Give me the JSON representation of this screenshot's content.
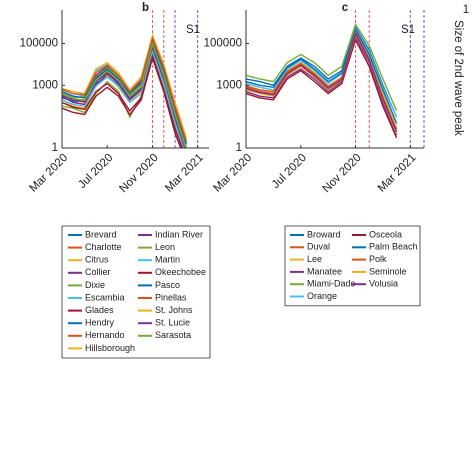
{
  "chart_data": [
    {
      "type": "line",
      "title": "b",
      "annotation": "S1",
      "log_y": true,
      "x": [
        "2020-03",
        "2020-04",
        "2020-05",
        "2020-06",
        "2020-07",
        "2020-08",
        "2020-09",
        "2020-10",
        "2020-11",
        "2020-12",
        "2021-01",
        "2021-02"
      ],
      "xlim": [
        "2020-03",
        "2021-04"
      ],
      "xticks": [
        {
          "value": "2020-03",
          "label": "Mar 2020"
        },
        {
          "value": "2020-07",
          "label": "Jul 2020"
        },
        {
          "value": "2020-11",
          "label": "Nov 2020"
        },
        {
          "value": "2021-03",
          "label": "Mar 2021"
        }
      ],
      "ylim": [
        1,
        4000000
      ],
      "yticks": [
        1,
        1000,
        100000
      ],
      "vlines": [
        {
          "x": "2020-11",
          "color": "#e05a64"
        },
        {
          "x": "2020-12",
          "color": "#e05a64"
        },
        {
          "x": "2021-01",
          "color": "#8a4fc0"
        },
        {
          "x": "2021-03",
          "color": "#4a5ee0"
        }
      ],
      "series": [
        {
          "name": "Brevard",
          "color": "#0072BD",
          "values": [
            300,
            150,
            200,
            1500,
            4000,
            1200,
            200,
            800,
            80000,
            2000,
            30,
            0.5
          ]
        },
        {
          "name": "Charlotte",
          "color": "#D95319",
          "values": [
            400,
            200,
            150,
            2000,
            6000,
            2000,
            300,
            1200,
            150000,
            5000,
            60,
            1
          ]
        },
        {
          "name": "Citrus",
          "color": "#EDB120",
          "values": [
            200,
            100,
            80,
            1000,
            3000,
            800,
            150,
            500,
            60000,
            1500,
            20,
            0.4
          ]
        },
        {
          "name": "Collier",
          "color": "#7E2F8E",
          "values": [
            500,
            300,
            250,
            3000,
            8000,
            2500,
            400,
            1500,
            200000,
            8000,
            100,
            2
          ]
        },
        {
          "name": "Dixie",
          "color": "#77AC30",
          "values": [
            100,
            80,
            50,
            400,
            1500,
            500,
            30,
            300,
            30000,
            800,
            10,
            0.3
          ]
        },
        {
          "name": "Escambia",
          "color": "#4DBEEE",
          "values": [
            600,
            400,
            300,
            5000,
            10000,
            3000,
            500,
            2000,
            120000,
            6000,
            80,
            1
          ]
        },
        {
          "name": "Glades",
          "color": "#A2142F",
          "values": [
            80,
            50,
            40,
            300,
            800,
            300,
            40,
            200,
            20000,
            500,
            5,
            0.2
          ]
        },
        {
          "name": "Hendry",
          "color": "#0072BD",
          "values": [
            250,
            180,
            200,
            1200,
            2500,
            1000,
            250,
            700,
            50000,
            1500,
            25,
            0.5
          ]
        },
        {
          "name": "Hernando",
          "color": "#D95319",
          "values": [
            350,
            200,
            180,
            1800,
            5000,
            1500,
            300,
            900,
            90000,
            3000,
            40,
            0.8
          ]
        },
        {
          "name": "Hillsborough",
          "color": "#EDB120",
          "values": [
            700,
            500,
            400,
            6000,
            12000,
            4000,
            600,
            2500,
            250000,
            10000,
            150,
            3
          ]
        },
        {
          "name": "Indian River",
          "color": "#7E2F8E",
          "values": [
            300,
            150,
            120,
            1000,
            3500,
            1200,
            200,
            600,
            70000,
            2000,
            30,
            0.6
          ]
        },
        {
          "name": "Leon",
          "color": "#77AC30",
          "values": [
            450,
            250,
            300,
            2500,
            7000,
            2500,
            350,
            1000,
            100000,
            4000,
            50,
            1
          ]
        },
        {
          "name": "Martin",
          "color": "#4DBEEE",
          "values": [
            200,
            120,
            100,
            900,
            2500,
            900,
            150,
            400,
            40000,
            1200,
            15,
            0.4
          ]
        },
        {
          "name": "Okeechobee",
          "color": "#A2142F",
          "values": [
            150,
            90,
            70,
            500,
            1200,
            400,
            60,
            250,
            25000,
            600,
            8,
            0.3
          ]
        },
        {
          "name": "Pasco",
          "color": "#0072BD",
          "values": [
            500,
            300,
            250,
            2200,
            6000,
            2000,
            400,
            1300,
            130000,
            5000,
            70,
            1.5
          ]
        },
        {
          "name": "Pinellas",
          "color": "#D95319",
          "values": [
            650,
            400,
            350,
            4000,
            9000,
            3000,
            500,
            1800,
            180000,
            7000,
            90,
            2
          ]
        },
        {
          "name": "St. Johns",
          "color": "#EDB120",
          "values": [
            400,
            220,
            200,
            1600,
            4500,
            1600,
            280,
            900,
            85000,
            2500,
            35,
            0.7
          ]
        },
        {
          "name": "St. Lucie",
          "color": "#7E2F8E",
          "values": [
            350,
            200,
            170,
            1400,
            4000,
            1400,
            260,
            800,
            75000,
            2200,
            30,
            0.6
          ]
        },
        {
          "name": "Sarasota",
          "color": "#77AC30",
          "values": [
            380,
            230,
            190,
            1700,
            4800,
            1700,
            290,
            850,
            95000,
            2800,
            40,
            0.8
          ]
        }
      ]
    },
    {
      "type": "line",
      "title": "c",
      "annotation": "S1",
      "log_y": true,
      "x": [
        "2020-03",
        "2020-04",
        "2020-05",
        "2020-06",
        "2020-07",
        "2020-08",
        "2020-09",
        "2020-10",
        "2020-11",
        "2020-12",
        "2021-01",
        "2021-02"
      ],
      "xlim": [
        "2020-03",
        "2021-04"
      ],
      "xticks": [
        {
          "value": "2020-03",
          "label": "Mar 2020"
        },
        {
          "value": "2020-07",
          "label": "Jul 2020"
        },
        {
          "value": "2020-11",
          "label": "Nov 2020"
        },
        {
          "value": "2021-03",
          "label": "Mar 2021"
        }
      ],
      "ylim": [
        1,
        4000000
      ],
      "yticks": [
        1,
        1000,
        100000
      ],
      "vlines": [
        {
          "x": "2020-11",
          "color": "#e05a64"
        },
        {
          "x": "2020-12",
          "color": "#e05a64"
        },
        {
          "x": "2021-03",
          "color": "#4a5ee0"
        },
        {
          "x": "2021-04",
          "color": "#4a5ee0"
        }
      ],
      "series": [
        {
          "name": "Broward",
          "color": "#0072BD",
          "values": [
            2000,
            1500,
            1000,
            8000,
            20000,
            8000,
            2000,
            5000,
            600000,
            50000,
            1000,
            30
          ]
        },
        {
          "name": "Duval",
          "color": "#D95319",
          "values": [
            800,
            500,
            400,
            4000,
            10000,
            3000,
            800,
            2000,
            300000,
            20000,
            300,
            8
          ]
        },
        {
          "name": "Lee",
          "color": "#EDB120",
          "values": [
            1000,
            600,
            500,
            5000,
            12000,
            4000,
            900,
            2500,
            400000,
            25000,
            400,
            10
          ]
        },
        {
          "name": "Manatee",
          "color": "#7E2F8E",
          "values": [
            500,
            300,
            250,
            2500,
            6000,
            2000,
            500,
            1500,
            200000,
            12000,
            150,
            4
          ]
        },
        {
          "name": "Miami-Dade",
          "color": "#77AC30",
          "values": [
            3000,
            2000,
            1500,
            12000,
            30000,
            12000,
            3000,
            8000,
            800000,
            80000,
            2000,
            60
          ]
        },
        {
          "name": "Orange",
          "color": "#4DBEEE",
          "values": [
            1200,
            800,
            600,
            6000,
            15000,
            5000,
            1200,
            3500,
            500000,
            40000,
            800,
            30
          ]
        },
        {
          "name": "Osceola",
          "color": "#A2142F",
          "values": [
            400,
            250,
            200,
            2000,
            5000,
            1500,
            400,
            1200,
            150000,
            8000,
            100,
            3
          ]
        },
        {
          "name": "Palm Beach",
          "color": "#0072BD",
          "values": [
            1500,
            1000,
            800,
            7000,
            18000,
            6000,
            1500,
            4000,
            450000,
            30000,
            600,
            15
          ]
        },
        {
          "name": "Polk",
          "color": "#D95319",
          "values": [
            900,
            600,
            500,
            4500,
            11000,
            3500,
            900,
            2200,
            350000,
            18000,
            250,
            6
          ]
        },
        {
          "name": "Seminole",
          "color": "#EDB120",
          "values": [
            600,
            400,
            300,
            3000,
            8000,
            2500,
            600,
            1800,
            250000,
            15000,
            200,
            5
          ]
        },
        {
          "name": "Volusia",
          "color": "#7E2F8E",
          "values": [
            700,
            450,
            350,
            3500,
            9000,
            2800,
            700,
            1900,
            280000,
            16000,
            220,
            6
          ]
        }
      ]
    }
  ],
  "colorbar_label": "Size of 2nd wave peak",
  "colorbar_ticks": [
    1
  ]
}
